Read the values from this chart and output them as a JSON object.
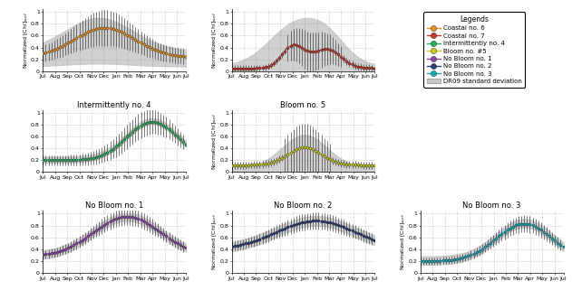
{
  "months_labels": [
    "Jul",
    "Aug",
    "Sep",
    "Oct",
    "Nov",
    "Dec",
    "Jan",
    "Feb",
    "Mar",
    "Apr",
    "May",
    "Jun",
    "Jul"
  ],
  "titles": {
    "coastal6": "",
    "coastal7": "",
    "intermittent4": "Intermittently no. 4",
    "bloom5": "Bloom no. 5",
    "nobloom1": "No Bloom no. 1",
    "nobloom2": "No Bloom no. 2",
    "nobloom3": "No Bloom no. 3"
  },
  "legend_title": "Legends",
  "legend_entries": [
    "Coastal no. 6",
    "Coastal no. 7",
    "Intermittently no. 4",
    "Bloom no. #5",
    "No Bloom no. 1",
    "No Bloom no. 2",
    "No Bloom no. 3",
    "DR09 standard deviation"
  ],
  "colors": {
    "coastal6": "#E89020",
    "coastal7": "#C0392B",
    "intermittent4": "#27AE60",
    "bloom5": "#C8C820",
    "nobloom1": "#8E44AD",
    "nobloom2": "#2C3E7A",
    "nobloom3": "#17A8B8",
    "shade": "#C8C8C8"
  },
  "ylabel": "Normalized [Chl]$_{surf}$"
}
